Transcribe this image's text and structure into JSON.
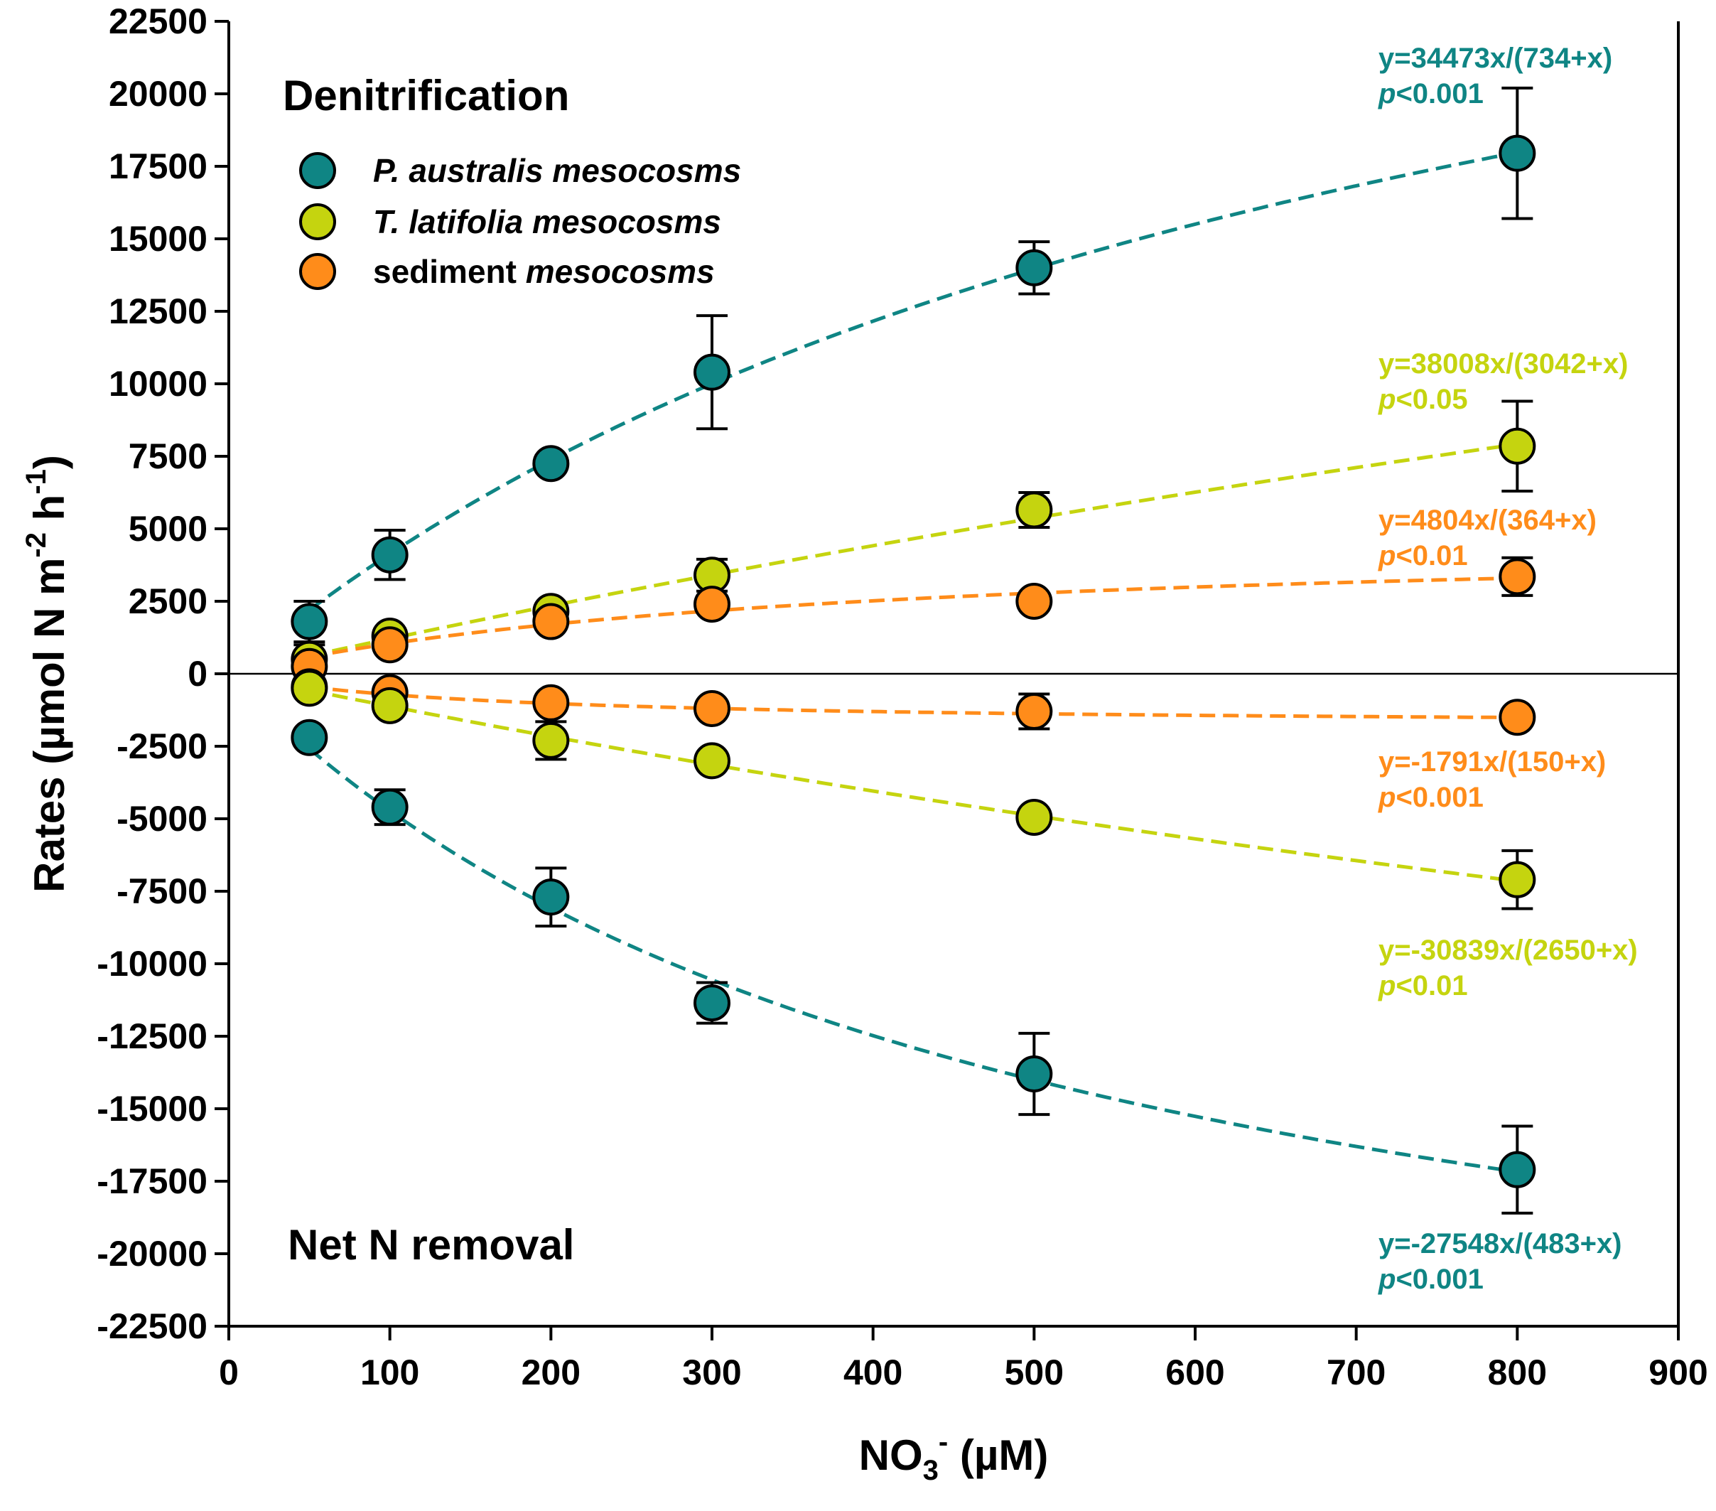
{
  "chart_data": {
    "type": "scatter",
    "title_top": "Denitrification",
    "title_bottom": "Net N removal",
    "xlabel": {
      "main": "NO",
      "sub": "3",
      "sup": "-",
      "rest": " (µM)"
    },
    "ylabel": {
      "main": "Rates (µmol N m",
      "sup1": "-2",
      "mid": " h",
      "sup2": "-1",
      "rest": ")"
    },
    "xlim": [
      0,
      900
    ],
    "ylim": [
      -22500,
      22500
    ],
    "x_ticks": [
      0,
      100,
      200,
      300,
      400,
      500,
      600,
      700,
      800,
      900
    ],
    "y_ticks": [
      -22500,
      -20000,
      -17500,
      -15000,
      -12500,
      -10000,
      -7500,
      -5000,
      -2500,
      0,
      2500,
      5000,
      7500,
      10000,
      12500,
      15000,
      17500,
      20000,
      22500
    ],
    "grid": false,
    "legend_position": "top-left",
    "legend": [
      {
        "italic": "P. australis mesocosms",
        "plain": "",
        "color": "#0f8584"
      },
      {
        "italic": "T. latifolia mesocosms",
        "plain": "",
        "color": "#c5d40f"
      },
      {
        "italic": "mesocosms",
        "plain": "sediment ",
        "color": "#ff8c1a"
      }
    ],
    "series": [
      {
        "name": "P. australis denitrification",
        "color": "#0f8584",
        "fit": {
          "a": 34473,
          "b": 734
        },
        "equation": "y=34473x/(734+x)",
        "p_prefix": "p",
        "p_value": "<0.001",
        "points": [
          {
            "x": 50,
            "y": 1800,
            "err": 700
          },
          {
            "x": 100,
            "y": 4100,
            "err": 850
          },
          {
            "x": 200,
            "y": 7250,
            "err": 0
          },
          {
            "x": 300,
            "y": 10400,
            "err": 1950
          },
          {
            "x": 500,
            "y": 14000,
            "err": 900
          },
          {
            "x": 800,
            "y": 17950,
            "err": 2250
          }
        ]
      },
      {
        "name": "T. latifolia denitrification",
        "color": "#c5d40f",
        "fit": {
          "a": 38008,
          "b": 3042
        },
        "equation": "y=38008x/(3042+x)",
        "p_prefix": "p",
        "p_value": "<0.05",
        "points": [
          {
            "x": 50,
            "y": 500,
            "err": 500
          },
          {
            "x": 100,
            "y": 1300,
            "err": 0
          },
          {
            "x": 200,
            "y": 2150,
            "err": 0
          },
          {
            "x": 300,
            "y": 3400,
            "err": 550
          },
          {
            "x": 500,
            "y": 5650,
            "err": 600
          },
          {
            "x": 800,
            "y": 7850,
            "err": 1550
          }
        ]
      },
      {
        "name": "sediment denitrification",
        "color": "#ff8c1a",
        "fit": {
          "a": 4804,
          "b": 364
        },
        "equation": "y=4804x/(364+x)",
        "p_prefix": "p",
        "p_value": "<0.01",
        "points": [
          {
            "x": 50,
            "y": 250,
            "err": 0
          },
          {
            "x": 100,
            "y": 1000,
            "err": 0
          },
          {
            "x": 200,
            "y": 1800,
            "err": 0
          },
          {
            "x": 300,
            "y": 2400,
            "err": 0
          },
          {
            "x": 500,
            "y": 2500,
            "err": 0
          },
          {
            "x": 800,
            "y": 3350,
            "err": 650
          }
        ]
      },
      {
        "name": "sediment net N removal",
        "color": "#ff8c1a",
        "fit": {
          "a": -1791,
          "b": 150
        },
        "equation": "y=-1791x/(150+x)",
        "p_prefix": "p",
        "p_value": "<0.001",
        "points": [
          {
            "x": 50,
            "y": -450,
            "err": 0
          },
          {
            "x": 100,
            "y": -650,
            "err": 0
          },
          {
            "x": 200,
            "y": -1000,
            "err": 0
          },
          {
            "x": 300,
            "y": -1200,
            "err": 0
          },
          {
            "x": 500,
            "y": -1300,
            "err": 600
          },
          {
            "x": 800,
            "y": -1500,
            "err": 0
          }
        ]
      },
      {
        "name": "T. latifolia net N removal",
        "color": "#c5d40f",
        "fit": {
          "a": -30839,
          "b": 2650
        },
        "equation": "y=-30839x/(2650+x)",
        "p_prefix": "p",
        "p_value": "<0.01",
        "points": [
          {
            "x": 50,
            "y": -500,
            "err": 0
          },
          {
            "x": 100,
            "y": -1100,
            "err": 0
          },
          {
            "x": 200,
            "y": -2300,
            "err": 650
          },
          {
            "x": 300,
            "y": -3000,
            "err": 0
          },
          {
            "x": 500,
            "y": -4950,
            "err": 0
          },
          {
            "x": 800,
            "y": -7100,
            "err": 1000
          }
        ]
      },
      {
        "name": "P. australis net N removal",
        "color": "#0f8584",
        "fit": {
          "a": -27548,
          "b": 483
        },
        "equation": "y=-27548x/(483+x)",
        "p_prefix": "p",
        "p_value": "<0.001",
        "points": [
          {
            "x": 50,
            "y": -2200,
            "err": 0
          },
          {
            "x": 100,
            "y": -4600,
            "err": 600
          },
          {
            "x": 200,
            "y": -7700,
            "err": 1000
          },
          {
            "x": 300,
            "y": -11350,
            "err": 700
          },
          {
            "x": 500,
            "y": -13800,
            "err": 1400
          },
          {
            "x": 800,
            "y": -17100,
            "err": 1500
          }
        ]
      }
    ]
  }
}
